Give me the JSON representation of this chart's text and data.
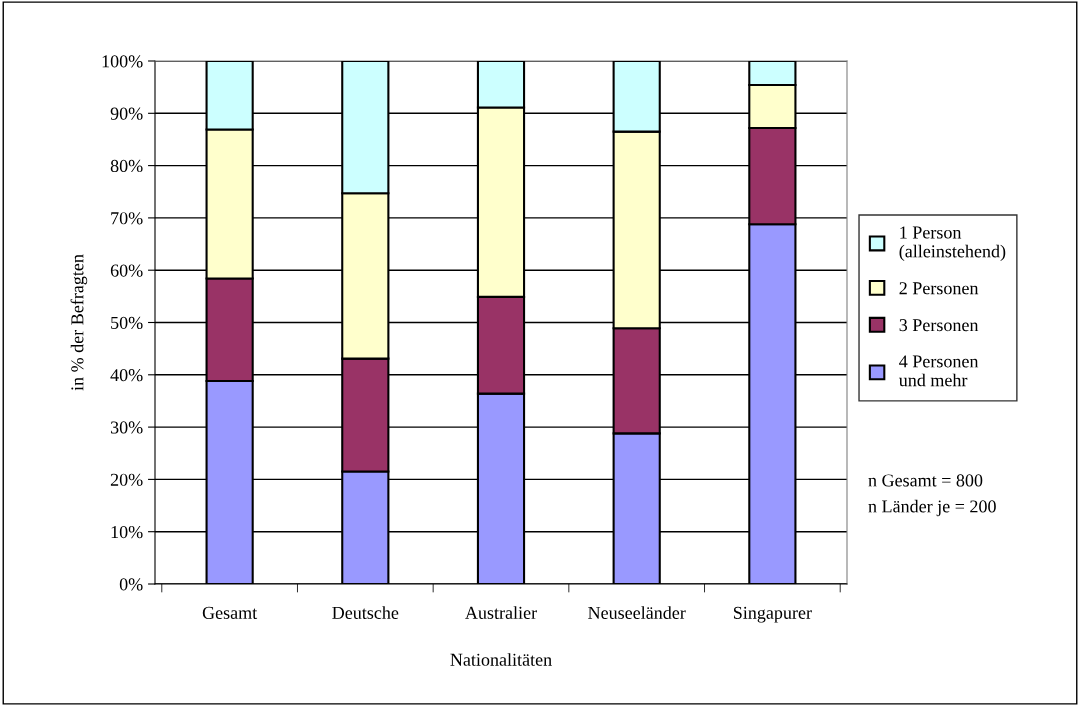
{
  "chart_data": {
    "type": "bar",
    "stacked": true,
    "categories": [
      "Gesamt",
      "Deutsche",
      "Australier",
      "Neuseeländer",
      "Singapurer"
    ],
    "series": [
      {
        "name": "4 Personen und mehr",
        "color": "#9999ff",
        "values": [
          38.8,
          21.5,
          36.4,
          28.8,
          68.8
        ]
      },
      {
        "name": "3 Personen",
        "color": "#993366",
        "values": [
          19.6,
          21.6,
          18.5,
          20.1,
          18.4
        ]
      },
      {
        "name": "2 Personen",
        "color": "#ffffcc",
        "values": [
          28.5,
          31.6,
          36.2,
          37.6,
          8.2
        ]
      },
      {
        "name": "1 Person (alleinstehend)",
        "color": "#ccffff",
        "values": [
          13.1,
          25.3,
          8.9,
          13.5,
          4.6
        ]
      }
    ],
    "xlabel": "Nationalitäten",
    "ylabel": "in % der Befragten",
    "ylim": [
      0,
      100
    ],
    "yticks": [
      {
        "value": 0,
        "label": "0%"
      },
      {
        "value": 10,
        "label": "10%"
      },
      {
        "value": 20,
        "label": "20%"
      },
      {
        "value": 30,
        "label": "30%"
      },
      {
        "value": 40,
        "label": "40%"
      },
      {
        "value": 50,
        "label": "50%"
      },
      {
        "value": 60,
        "label": "60%"
      },
      {
        "value": 70,
        "label": "70%"
      },
      {
        "value": 80,
        "label": "80%"
      },
      {
        "value": 90,
        "label": "90%"
      },
      {
        "value": 100,
        "label": "100%"
      }
    ],
    "grid": "y",
    "legend": "right",
    "annotations": [
      "n Gesamt = 800",
      "n Länder je = 200"
    ]
  }
}
